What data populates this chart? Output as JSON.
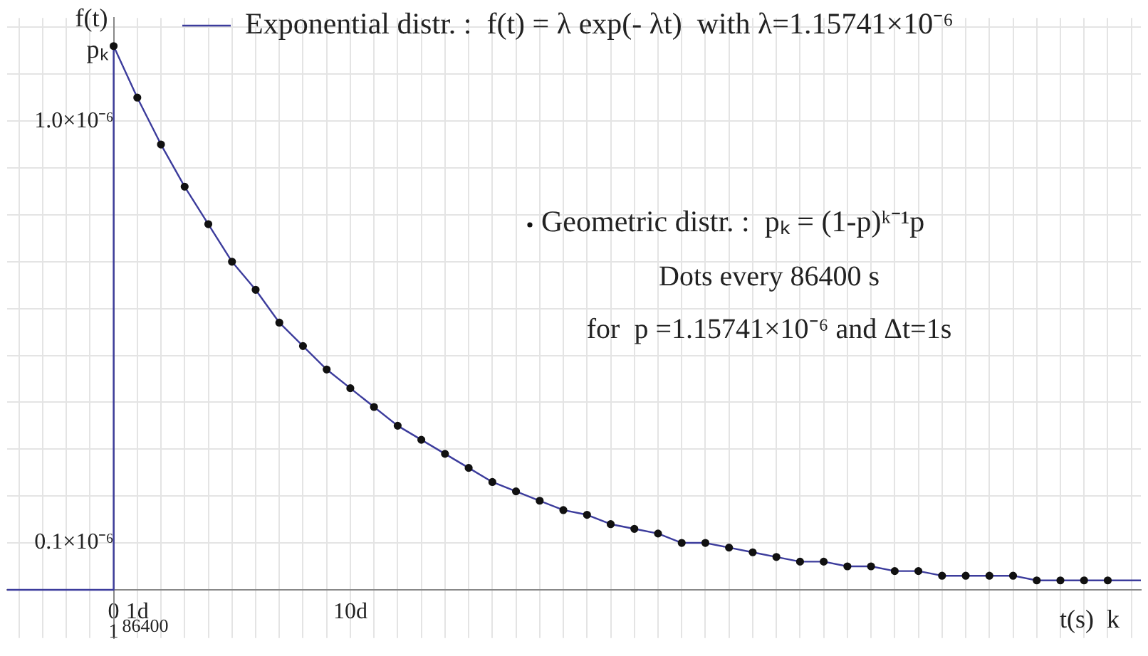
{
  "chart_data": {
    "type": "line",
    "xlabel": "t(s)  k",
    "ylabel": "f(t)\npₖ",
    "legend": "top",
    "grid": true,
    "xlim": [
      -4.5,
      43.4
    ],
    "ylim": [
      -1.03e-07,
      1.22e-06
    ],
    "xticks": [
      {
        "value": -4,
        "label": null
      },
      {
        "value": -3,
        "label": null
      },
      {
        "value": -2,
        "label": null
      },
      {
        "value": -1,
        "label": null
      },
      {
        "value": 0,
        "label": "0"
      },
      {
        "value": 1,
        "label": "1d"
      },
      {
        "value": 2,
        "label": null
      },
      {
        "value": 3,
        "label": null
      },
      {
        "value": 4,
        "label": null
      },
      {
        "value": 5,
        "label": null
      },
      {
        "value": 6,
        "label": null
      },
      {
        "value": 7,
        "label": null
      },
      {
        "value": 8,
        "label": null
      },
      {
        "value": 9,
        "label": null
      },
      {
        "value": 10,
        "label": "10d"
      },
      {
        "value": 11,
        "label": null
      },
      {
        "value": 12,
        "label": null
      },
      {
        "value": 13,
        "label": null
      },
      {
        "value": 14,
        "label": null
      },
      {
        "value": 15,
        "label": null
      },
      {
        "value": 16,
        "label": null
      },
      {
        "value": 17,
        "label": null
      },
      {
        "value": 18,
        "label": null
      },
      {
        "value": 19,
        "label": null
      },
      {
        "value": 20,
        "label": null
      },
      {
        "value": 21,
        "label": null
      },
      {
        "value": 22,
        "label": null
      },
      {
        "value": 23,
        "label": null
      },
      {
        "value": 24,
        "label": null
      },
      {
        "value": 25,
        "label": null
      },
      {
        "value": 26,
        "label": null
      },
      {
        "value": 27,
        "label": null
      },
      {
        "value": 28,
        "label": null
      },
      {
        "value": 29,
        "label": null
      },
      {
        "value": 30,
        "label": null
      },
      {
        "value": 31,
        "label": null
      },
      {
        "value": 32,
        "label": null
      },
      {
        "value": 33,
        "label": null
      },
      {
        "value": 34,
        "label": null
      },
      {
        "value": 35,
        "label": null
      },
      {
        "value": 36,
        "label": null
      },
      {
        "value": 37,
        "label": null
      },
      {
        "value": 38,
        "label": null
      },
      {
        "value": 39,
        "label": null
      },
      {
        "value": 40,
        "label": null
      },
      {
        "value": 41,
        "label": null
      },
      {
        "value": 42,
        "label": null
      },
      {
        "value": 43,
        "label": null
      }
    ],
    "yticks": [
      {
        "value": 0,
        "label": null
      },
      {
        "value": 1e-07,
        "label": "0.1×10⁻⁶"
      },
      {
        "value": 2e-07,
        "label": null
      },
      {
        "value": 3e-07,
        "label": null
      },
      {
        "value": 4e-07,
        "label": null
      },
      {
        "value": 5e-07,
        "label": null
      },
      {
        "value": 6e-07,
        "label": null
      },
      {
        "value": 7e-07,
        "label": null
      },
      {
        "value": 8e-07,
        "label": null
      },
      {
        "value": 9e-07,
        "label": null
      },
      {
        "value": 1e-06,
        "label": "1.0×10⁻⁶"
      },
      {
        "value": 1.1e-06,
        "label": null
      },
      {
        "value": 1.2e-06,
        "label": null
      }
    ],
    "series": [
      {
        "type": "line",
        "name": "Exponential distr. :  f(t) = λ exp(- λt)  with λ=1.15741×10⁻⁶",
        "color": "#3c3c9c",
        "marker": "none",
        "x": [
          -4.5,
          0,
          0,
          1,
          2,
          3,
          4,
          5,
          6,
          7,
          8,
          9,
          10,
          11,
          12,
          13,
          14,
          15,
          16,
          17,
          18,
          19,
          20,
          21,
          22,
          23,
          24,
          25,
          26,
          27,
          28,
          29,
          30,
          31,
          32,
          33,
          34,
          35,
          36,
          37,
          38,
          39,
          40,
          41,
          42,
          43.4
        ],
        "values": [
          0,
          0,
          1.16e-06,
          1.05e-06,
          9.5e-07,
          8.6e-07,
          7.8e-07,
          7e-07,
          6.4e-07,
          5.7e-07,
          5.2e-07,
          4.7e-07,
          4.3e-07,
          3.9e-07,
          3.5e-07,
          3.2e-07,
          2.9e-07,
          2.6e-07,
          2.3e-07,
          2.1e-07,
          1.9e-07,
          1.7e-07,
          1.6e-07,
          1.4e-07,
          1.3e-07,
          1.2e-07,
          1e-07,
          1e-07,
          9e-08,
          8e-08,
          7e-08,
          6e-08,
          6e-08,
          5e-08,
          5e-08,
          4e-08,
          4e-08,
          3e-08,
          3e-08,
          3e-08,
          3e-08,
          2e-08,
          2e-08,
          2e-08,
          2e-08,
          2e-08
        ]
      },
      {
        "type": "scatter",
        "name": "Geometric distr. :  pₖ = (1-p)ᵏ⁻¹p",
        "color": "#111111",
        "marker": "circle",
        "x": [
          0,
          1,
          2,
          3,
          4,
          5,
          6,
          7,
          8,
          9,
          10,
          11,
          12,
          13,
          14,
          15,
          16,
          17,
          18,
          19,
          20,
          21,
          22,
          23,
          24,
          25,
          26,
          27,
          28,
          29,
          30,
          31,
          32,
          33,
          34,
          35,
          36,
          37,
          38,
          39,
          40,
          41,
          42
        ],
        "values": [
          1.16e-06,
          1.05e-06,
          9.5e-07,
          8.6e-07,
          7.8e-07,
          7e-07,
          6.4e-07,
          5.7e-07,
          5.2e-07,
          4.7e-07,
          4.3e-07,
          3.9e-07,
          3.5e-07,
          3.2e-07,
          2.9e-07,
          2.6e-07,
          2.3e-07,
          2.1e-07,
          1.9e-07,
          1.7e-07,
          1.6e-07,
          1.4e-07,
          1.3e-07,
          1.2e-07,
          1e-07,
          1e-07,
          9e-08,
          8e-08,
          7e-08,
          6e-08,
          6e-08,
          5e-08,
          5e-08,
          4e-08,
          4e-08,
          3e-08,
          3e-08,
          3e-08,
          3e-08,
          2e-08,
          2e-08,
          2e-08,
          2e-08
        ]
      }
    ],
    "annotations": [
      "Dots every 86400 s",
      "for  p =1.15741×10⁻⁶ and Δt=1s",
      "1",
      "86400"
    ]
  }
}
